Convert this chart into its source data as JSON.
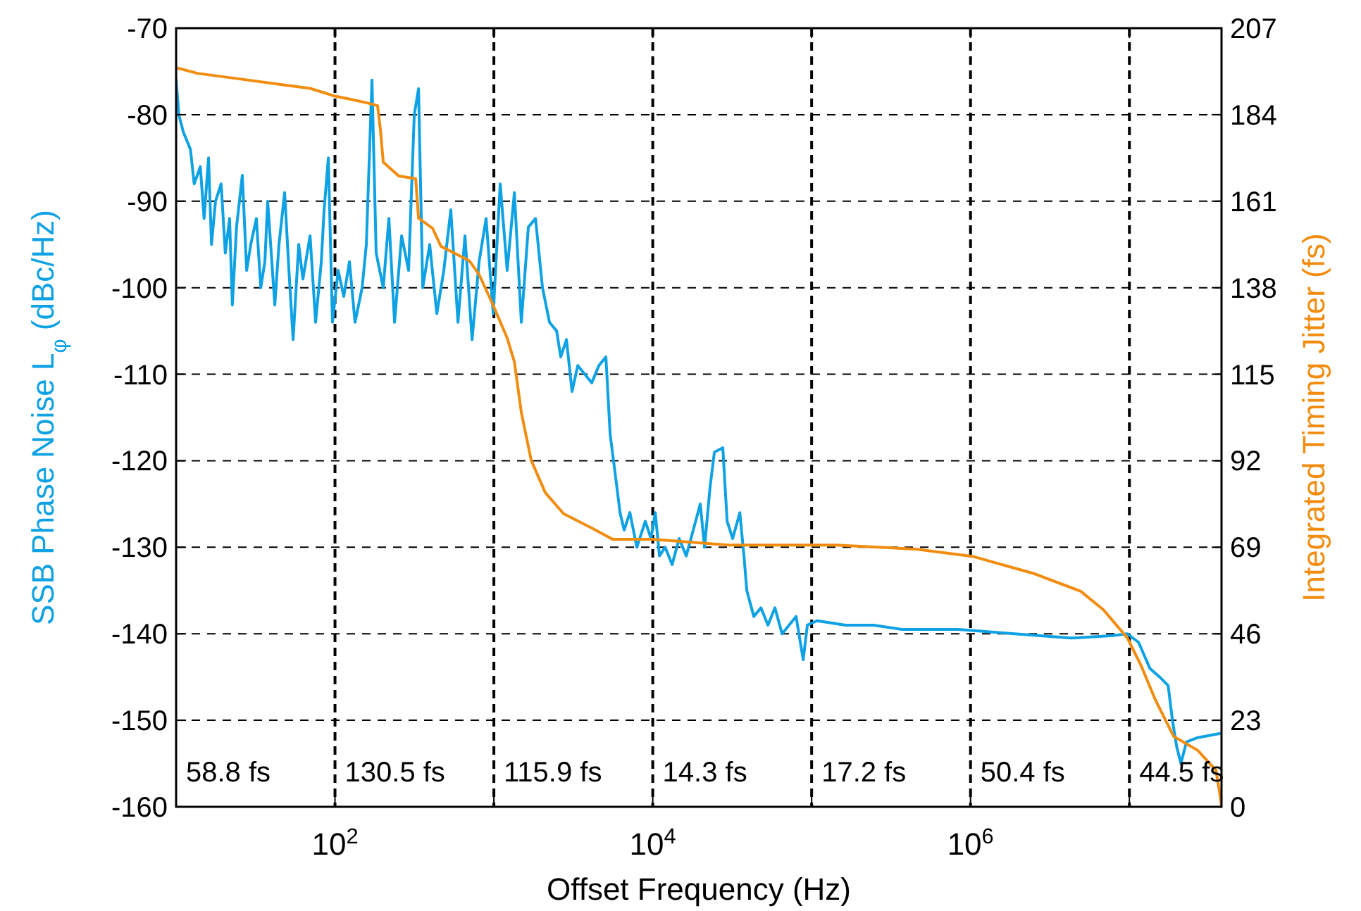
{
  "chart_data": {
    "type": "line",
    "xlabel": "Offset Frequency (Hz)",
    "ylabel": "SSB Phase Noise L$_{φ}$  (dBc/Hz)",
    "y2label": "Integrated Timing Jitter  (fs)",
    "log": "x",
    "grid": true,
    "line_style": "solid",
    "marker": "none",
    "xlim": [
      10,
      38000000
    ],
    "xticks": [
      {
        "value": 100,
        "label": "10$^{2}$"
      },
      {
        "value": 1000,
        "label": null
      },
      {
        "value": 10000,
        "label": "10$^{4}$"
      },
      {
        "value": 100000,
        "label": null
      },
      {
        "value": 1000000,
        "label": "10$^{6}$"
      },
      {
        "value": 10000000,
        "label": null
      }
    ],
    "ylim": [
      -160,
      -70
    ],
    "yticks": [
      -160,
      -150,
      -140,
      -130,
      -120,
      -110,
      -100,
      -90,
      -80,
      -70
    ],
    "y2lim": [
      0,
      207
    ],
    "y2ticks": [
      0,
      23,
      46,
      69,
      92,
      115,
      138,
      161,
      184,
      207
    ],
    "series": [
      {
        "color": "#0ea2e4",
        "x": [
          10,
          10.4,
          11.1,
          12.3,
          13.0,
          14.2,
          15.0,
          16.0,
          16.7,
          17.7,
          19.2,
          20.4,
          21.7,
          22.6,
          24.0,
          26.1,
          27.8,
          29.5,
          32.0,
          34.1,
          36.2,
          37.7,
          41.8,
          44.4,
          48.2,
          51.3,
          54.5,
          59.1,
          62.8,
          69.7,
          75.5,
          82.0,
          85.4,
          90.8,
          96.4,
          104.7,
          113.6,
          123.3,
          133.7,
          148.2,
          157.5,
          170.9,
          181.6,
          201.2,
          218.4,
          237.1,
          262.6,
          290.6,
          315.5,
          335.6,
          356.7,
          394.5,
          437.5,
          484.2,
          535.8,
          594.3,
          657.7,
          729.4,
          807.2,
          893.4,
          990.8,
          1096,
          1213,
          1346,
          1489,
          1648,
          1828,
          2023,
          2239,
          2483,
          2636,
          2864,
          3105,
          3373,
          3733,
          4130,
          4581,
          5070,
          5395,
          5848,
          6223,
          6607,
          7178,
          7943,
          8974,
          9750,
          10370,
          11020,
          11970,
          13240,
          14660,
          16250,
          17990,
          19910,
          21180,
          22960,
          24430,
          27610,
          29380,
          31840,
          35320,
          37500,
          39080,
          43250,
          47970,
          53090,
          58750,
          65160,
          72110,
          79800,
          88510,
          93970,
          108400,
          163300,
          245500,
          369800,
          835700,
          1892000,
          4285000,
          7907000,
          9705000,
          11430000,
          13460000,
          15520000,
          17540000,
          18660000,
          19820000,
          21090000,
          22860000,
          26920000,
          38000000
        ],
        "values": [
          -76,
          -80,
          -82,
          -84,
          -88,
          -86,
          -92,
          -85,
          -95,
          -90,
          -88,
          -96,
          -92,
          -102,
          -93,
          -87,
          -98,
          -95,
          -92,
          -100,
          -97,
          -90,
          -102,
          -95,
          -89,
          -98,
          -106,
          -95,
          -99,
          -94,
          -104,
          -97,
          -91,
          -85,
          -104,
          -98,
          -101,
          -97,
          -104,
          -100,
          -95,
          -76,
          -96,
          -100,
          -92,
          -104,
          -94,
          -98,
          -80,
          -77,
          -100,
          -95,
          -103,
          -98,
          -91,
          -104,
          -94,
          -106,
          -97,
          -92,
          -103,
          -88,
          -98,
          -89,
          -104,
          -93,
          -92,
          -100,
          -104,
          -105,
          -108,
          -106,
          -112,
          -109,
          -110,
          -111,
          -109,
          -108,
          -117,
          -122,
          -126,
          -128,
          -126,
          -130,
          -127,
          -129,
          -126,
          -131,
          -130,
          -132,
          -129,
          -131,
          -128,
          -125,
          -130,
          -123,
          -119,
          -118.5,
          -127,
          -129,
          -126,
          -131,
          -135,
          -138,
          -137,
          -139,
          -137,
          -140,
          -139,
          -138,
          -143,
          -139,
          -138.5,
          -139,
          -139,
          -139.5,
          -139.5,
          -140,
          -140.5,
          -140.2,
          -140,
          -141,
          -144,
          -145,
          -146,
          -150,
          -153,
          -155,
          -152.5,
          -152,
          -151.5
        ]
      },
      {
        "color": "#f28c0f",
        "axis": "y2",
        "x": [
          10,
          13.6,
          25.1,
          46.3,
          69.7,
          98.4,
          128.5,
          164.1,
          185.3,
          193.2,
          201.2,
          251.9,
          322.1,
          335.6,
          411.2,
          464.5,
          699.4,
          807.2,
          990.8,
          1213,
          1346,
          1489,
          1718,
          2108,
          2748,
          4130,
          5610,
          9954,
          29990,
          141600,
          452900,
          1025000,
          2466000,
          4943000,
          6852000,
          9705000,
          11890000,
          14580000,
          19010000,
          26920000,
          35080000,
          37500000,
          38000000
        ],
        "values": [
          196.5,
          195,
          193.5,
          192,
          191,
          189,
          188,
          187,
          186.4,
          180,
          171.4,
          167.7,
          167,
          156.5,
          153.8,
          149,
          145.2,
          141.5,
          133.3,
          124.6,
          118.3,
          104.8,
          92.1,
          83.5,
          77.9,
          74.1,
          71.1,
          71.1,
          69.6,
          69.6,
          68.5,
          66.6,
          62.1,
          57.3,
          52.4,
          44.9,
          37.4,
          28.4,
          18.7,
          15,
          9.7,
          2.2,
          0
        ]
      }
    ],
    "annotations": [
      "58.8 fs",
      "130.5 fs",
      "115.9 fs",
      "14.3 fs",
      "17.2 fs",
      "50.4 fs",
      "44.5 fs"
    ]
  }
}
